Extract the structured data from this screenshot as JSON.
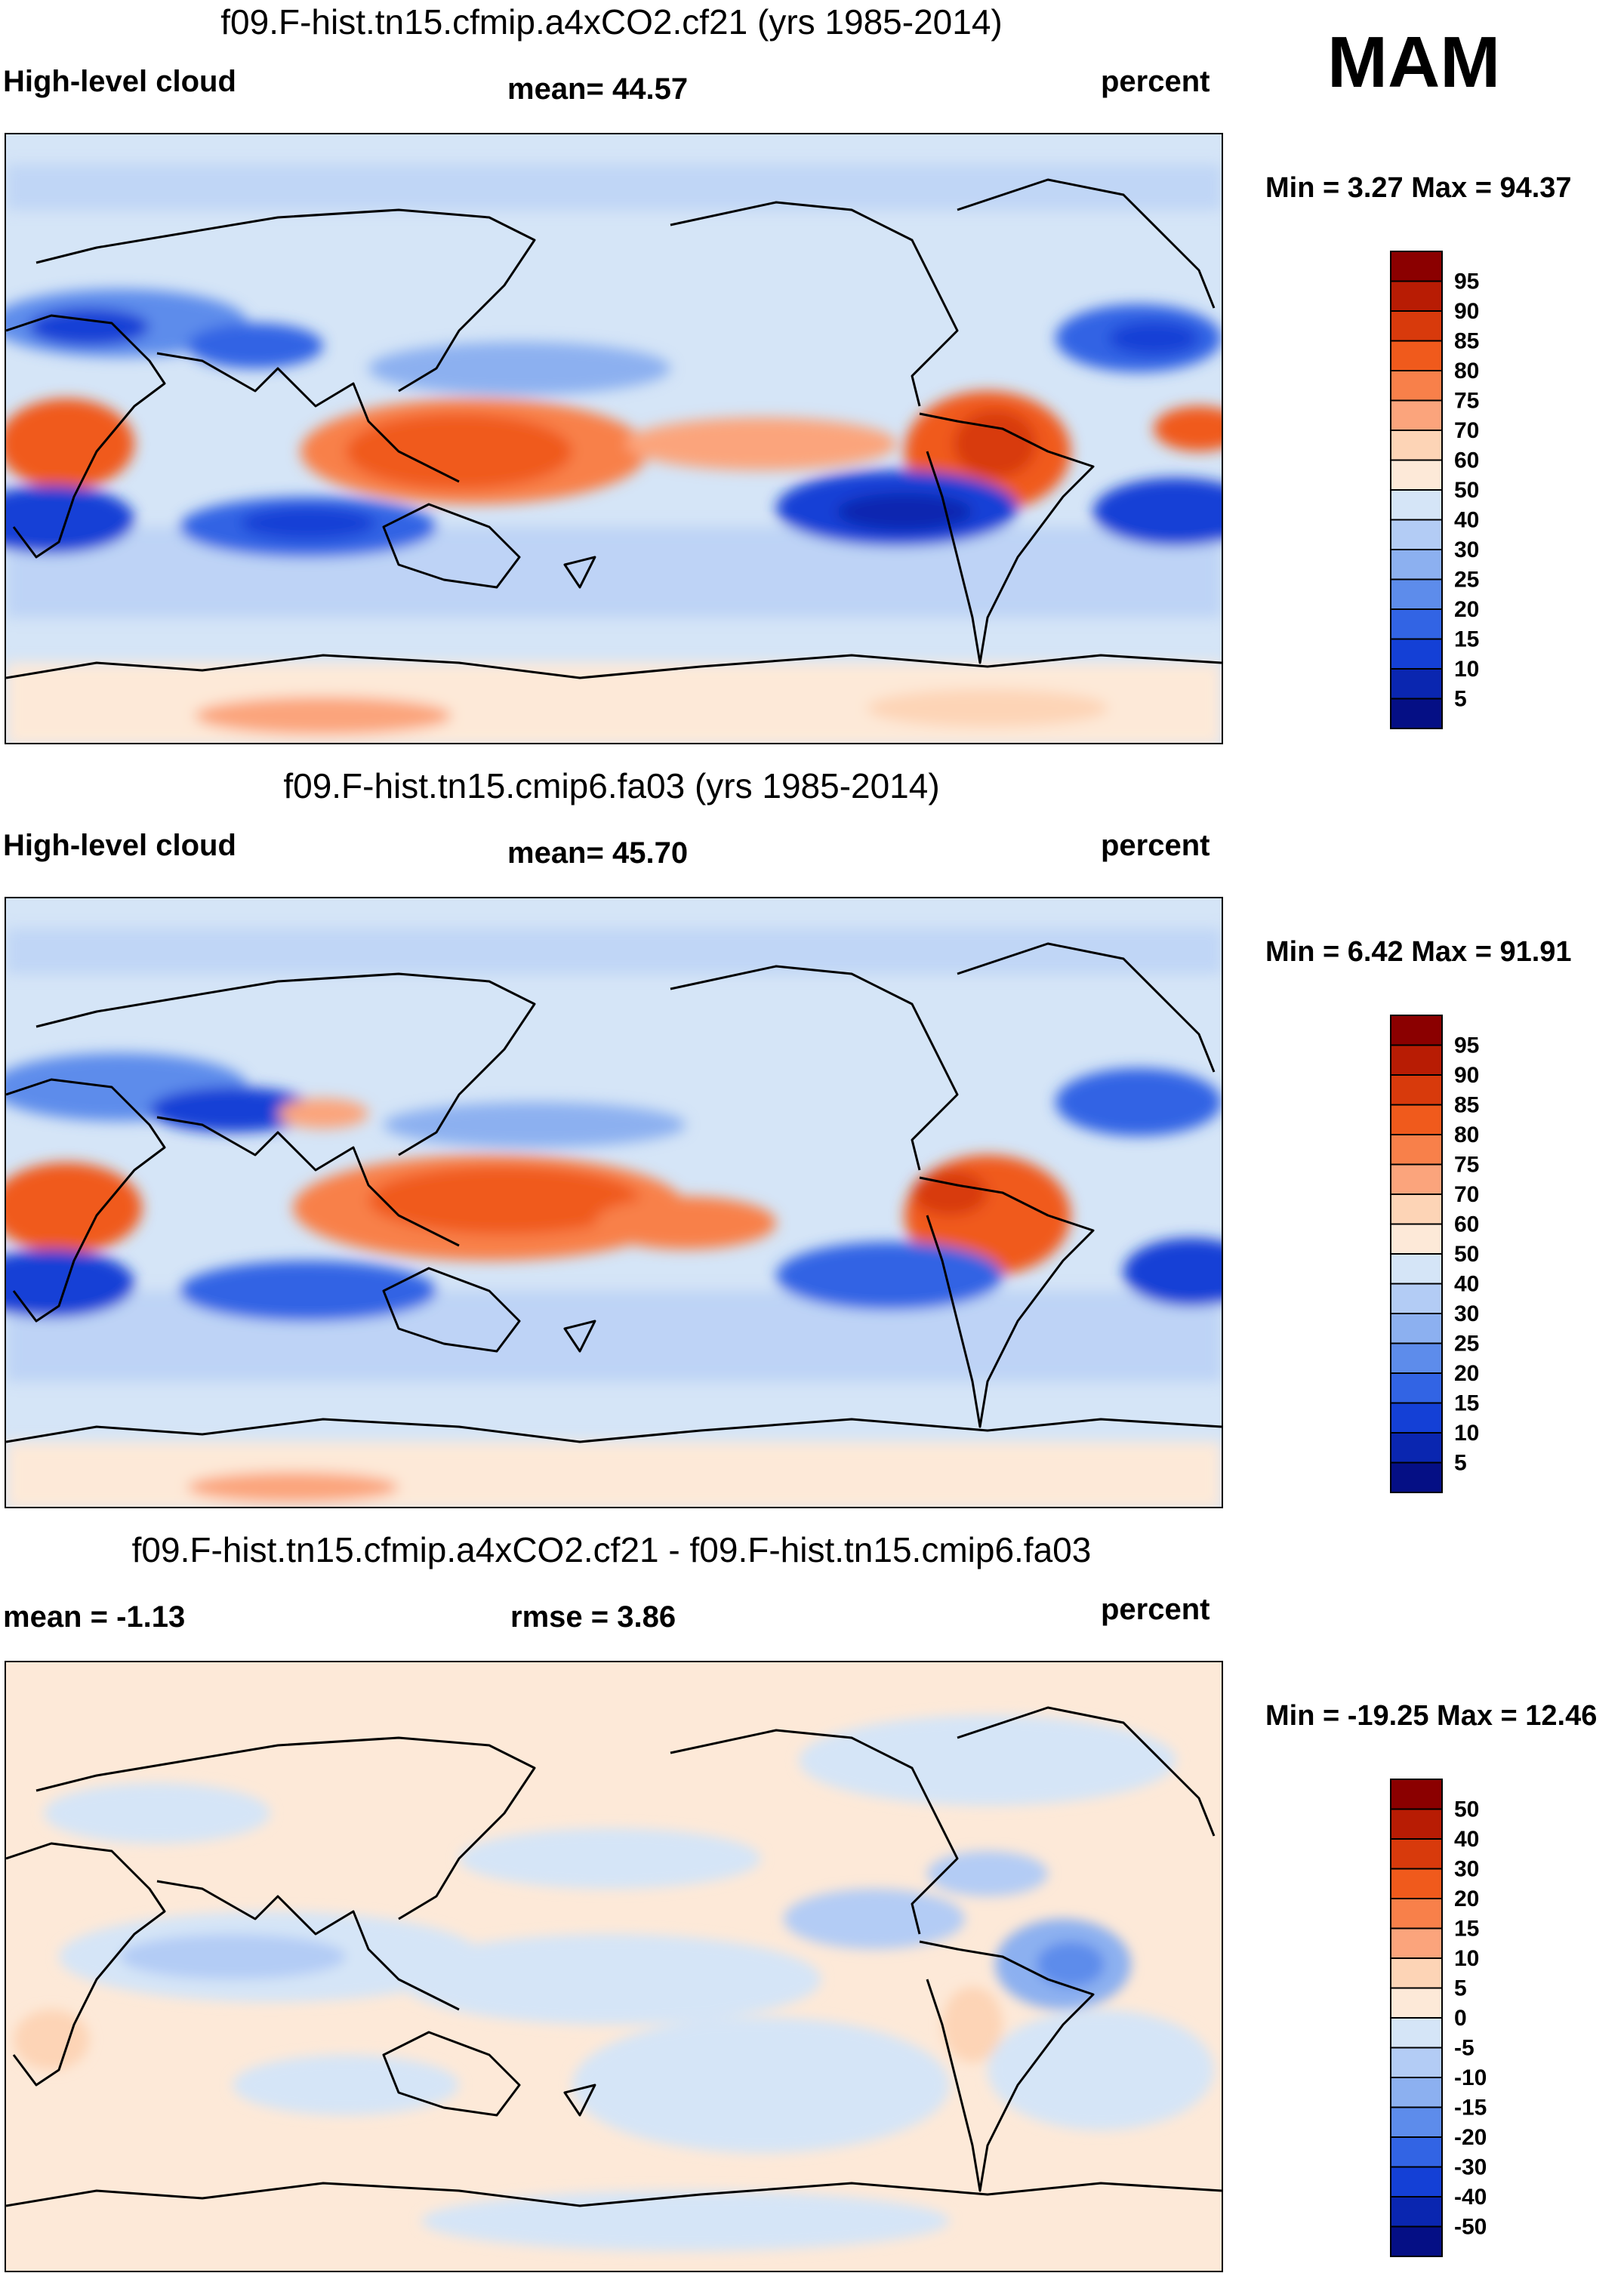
{
  "season": "MAM",
  "panels": [
    {
      "id": "a4xco2",
      "title": "f09.F-hist.tn15.cfmip.a4xCO2.cf21 (yrs 1985-2014)",
      "left_label": "High-level cloud",
      "center_label": "mean=  44.57",
      "right_label": "percent",
      "minmax": "Min =   3.27 Max =  94.37",
      "colorbar": {
        "labels": [
          "95",
          "90",
          "85",
          "80",
          "75",
          "70",
          "60",
          "50",
          "40",
          "30",
          "25",
          "20",
          "15",
          "10",
          "5"
        ],
        "colors": [
          "#8b0000",
          "#b81c04",
          "#d83a0c",
          "#f05a1c",
          "#f8804a",
          "#fba47c",
          "#fdd4b6",
          "#fde9d8",
          "#d5e5f7",
          "#b3ccf5",
          "#8cb0f0",
          "#5d8ceb",
          "#3264e4",
          "#1440d6",
          "#0a26b0",
          "#050f85"
        ]
      }
    },
    {
      "id": "cmip6",
      "title": "f09.F-hist.tn15.cmip6.fa03 (yrs 1985-2014)",
      "left_label": "High-level cloud",
      "center_label": "mean=  45.70",
      "right_label": "percent",
      "minmax": "Min =   6.42 Max =  91.91",
      "colorbar": {
        "labels": [
          "95",
          "90",
          "85",
          "80",
          "75",
          "70",
          "60",
          "50",
          "40",
          "30",
          "25",
          "20",
          "15",
          "10",
          "5"
        ],
        "colors": [
          "#8b0000",
          "#b81c04",
          "#d83a0c",
          "#f05a1c",
          "#f8804a",
          "#fba47c",
          "#fdd4b6",
          "#fde9d8",
          "#d5e5f7",
          "#b3ccf5",
          "#8cb0f0",
          "#5d8ceb",
          "#3264e4",
          "#1440d6",
          "#0a26b0",
          "#050f85"
        ]
      }
    },
    {
      "id": "diff",
      "title": "f09.F-hist.tn15.cfmip.a4xCO2.cf21 - f09.F-hist.tn15.cmip6.fa03",
      "left_label": "mean =  -1.13",
      "center_label": "rmse =    3.86",
      "right_label": "percent",
      "minmax": "Min = -19.25 Max =  12.46",
      "colorbar": {
        "labels": [
          "50",
          "40",
          "30",
          "20",
          "15",
          "10",
          "5",
          "0",
          "-5",
          "-10",
          "-15",
          "-20",
          "-30",
          "-40",
          "-50"
        ],
        "colors": [
          "#8b0000",
          "#b81c04",
          "#d83a0c",
          "#f05a1c",
          "#f8804a",
          "#fba47c",
          "#fdd4b6",
          "#fde9d8",
          "#d5e5f7",
          "#b3ccf5",
          "#8cb0f0",
          "#5d8ceb",
          "#3264e4",
          "#1440d6",
          "#0a26b0",
          "#050f85"
        ]
      }
    }
  ],
  "chart_data": [
    {
      "type": "heatmap",
      "title": "f09.F-hist.tn15.cfmip.a4xCO2.cf21 (yrs 1985-2014)",
      "variable": "High-level cloud",
      "units": "percent",
      "season": "MAM",
      "mean": 44.57,
      "min": 3.27,
      "max": 94.37,
      "contour_levels": [
        5,
        10,
        15,
        20,
        25,
        30,
        40,
        50,
        60,
        70,
        75,
        80,
        85,
        90,
        95
      ]
    },
    {
      "type": "heatmap",
      "title": "f09.F-hist.tn15.cmip6.fa03 (yrs 1985-2014)",
      "variable": "High-level cloud",
      "units": "percent",
      "season": "MAM",
      "mean": 45.7,
      "min": 6.42,
      "max": 91.91,
      "contour_levels": [
        5,
        10,
        15,
        20,
        25,
        30,
        40,
        50,
        60,
        70,
        75,
        80,
        85,
        90,
        95
      ]
    },
    {
      "type": "heatmap",
      "title": "f09.F-hist.tn15.cfmip.a4xCO2.cf21 - f09.F-hist.tn15.cmip6.fa03",
      "units": "percent",
      "mean": -1.13,
      "rmse": 3.86,
      "min": -19.25,
      "max": 12.46,
      "contour_levels": [
        -50,
        -40,
        -30,
        -20,
        -15,
        -10,
        -5,
        0,
        5,
        10,
        15,
        20,
        30,
        40,
        50
      ]
    }
  ]
}
